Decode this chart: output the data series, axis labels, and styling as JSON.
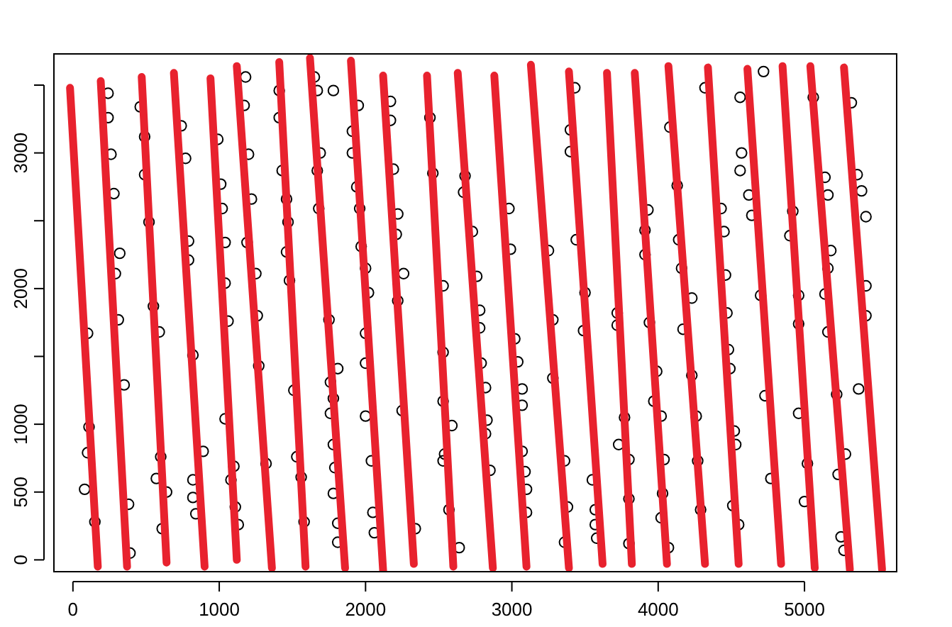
{
  "chart_data": {
    "type": "scatter",
    "xlim": [
      -130,
      5630
    ],
    "ylim": [
      -87,
      3730
    ],
    "xticks": [
      0,
      1000,
      2000,
      3000,
      4000,
      5000
    ],
    "yticks": [
      0,
      500,
      1000,
      {
        "value": 1500,
        "label": null
      },
      2000,
      {
        "value": 2500,
        "label": null
      },
      3000,
      {
        "value": 3500,
        "label": null
      }
    ],
    "grid": false,
    "series": [
      {
        "marker": "circle",
        "color": "#000000",
        "x": [
          240,
          240,
          260,
          280,
          320,
          290,
          310,
          740,
          770,
          790,
          790,
          460,
          490,
          490,
          520,
          550,
          990,
          1010,
          1020,
          1040,
          1040,
          1060,
          1180,
          1170,
          1200,
          1220,
          1190,
          1250,
          1260,
          1410,
          1410,
          1430,
          1460,
          1470,
          1460,
          1480,
          1650,
          1670,
          1690,
          1670,
          1680,
          1780,
          1950,
          1910,
          1910,
          1940,
          1960,
          1970,
          2000,
          2020,
          1750,
          2170,
          2170,
          2190,
          2220,
          2210,
          2260,
          2220,
          2440,
          2460,
          2530,
          2680,
          2670,
          2730,
          2760,
          2780,
          2980,
          2990,
          3250,
          3280,
          3430,
          3400,
          3400,
          3440,
          3500,
          3720,
          4320,
          4560,
          4720,
          4570,
          4560,
          4620,
          4640,
          4080,
          4130,
          4140,
          4160,
          4230,
          3930,
          3910,
          3910,
          3940,
          4430,
          4450,
          4460,
          4470,
          5060,
          5140,
          5160,
          5180,
          5160,
          5140,
          4960,
          4920,
          4900,
          5320,
          5360,
          5390,
          5420,
          5420,
          5420,
          4700,
          100,
          350,
          110,
          100,
          80,
          150,
          380,
          390,
          590,
          600,
          570,
          640,
          610,
          820,
          890,
          820,
          820,
          840,
          1040,
          1100,
          1080,
          1110,
          1130,
          1270,
          1320,
          1510,
          1530,
          1560,
          1580,
          1810,
          1760,
          1780,
          1760,
          1780,
          1790,
          1780,
          1810,
          1810,
          2000,
          2000,
          2000,
          2040,
          2050,
          2060,
          2250,
          2340,
          2530,
          2530,
          2590,
          2540,
          2530,
          2570,
          2640,
          2780,
          2790,
          2820,
          2830,
          2820,
          2850,
          3020,
          3040,
          3070,
          3070,
          3070,
          3090,
          3100,
          3100,
          3280,
          3360,
          3380,
          3360,
          3490,
          3550,
          3570,
          3570,
          3580,
          3730,
          3720,
          4170,
          3990,
          3970,
          4020,
          3770,
          3800,
          4040,
          3800,
          4030,
          4020,
          3800,
          4070,
          4230,
          4260,
          4270,
          4290,
          4480,
          4490,
          4520,
          4530,
          4510,
          4550,
          4730,
          4960,
          4960,
          4770,
          5000,
          5020,
          5160,
          5220,
          5280,
          5230,
          5250,
          5270,
          5370
        ],
        "values": [
          3440,
          3260,
          2990,
          2700,
          2260,
          2110,
          1770,
          3200,
          2960,
          2350,
          2210,
          3340,
          3120,
          2840,
          2490,
          1870,
          3100,
          2770,
          2590,
          2340,
          2040,
          1760,
          3560,
          3350,
          2990,
          2660,
          2340,
          2110,
          1800,
          3460,
          3260,
          2870,
          2660,
          2490,
          2270,
          2060,
          3560,
          3460,
          3000,
          2870,
          2590,
          3460,
          3350,
          3160,
          3000,
          2750,
          2590,
          2310,
          2150,
          1970,
          1770,
          3380,
          3240,
          2880,
          2550,
          2400,
          2110,
          1910,
          3260,
          2850,
          2020,
          2830,
          2710,
          2420,
          2090,
          1840,
          2590,
          2290,
          2280,
          1770,
          3480,
          3170,
          3010,
          2360,
          1970,
          1820,
          3480,
          3410,
          3600,
          3000,
          2870,
          2690,
          2540,
          3190,
          2760,
          2360,
          2150,
          1930,
          2580,
          2430,
          2250,
          1750,
          2590,
          2420,
          2100,
          1820,
          3410,
          2820,
          2690,
          2280,
          2150,
          1960,
          1950,
          2570,
          2390,
          3370,
          2840,
          2720,
          2530,
          2020,
          1800,
          1950,
          1670,
          1290,
          980,
          790,
          520,
          280,
          410,
          50,
          1680,
          760,
          600,
          500,
          230,
          1510,
          800,
          590,
          460,
          340,
          1040,
          690,
          590,
          390,
          260,
          1430,
          710,
          1250,
          760,
          610,
          280,
          1410,
          1310,
          1190,
          1080,
          850,
          680,
          490,
          270,
          130,
          1670,
          1450,
          1060,
          730,
          350,
          200,
          1100,
          230,
          1530,
          1170,
          990,
          780,
          730,
          370,
          90,
          1710,
          1450,
          1270,
          1030,
          930,
          660,
          1630,
          1460,
          1260,
          1140,
          800,
          650,
          520,
          350,
          1340,
          730,
          390,
          130,
          1690,
          590,
          370,
          260,
          160,
          850,
          1730,
          1700,
          1390,
          1170,
          1060,
          1050,
          740,
          740,
          450,
          490,
          310,
          120,
          90,
          1360,
          1060,
          730,
          370,
          1550,
          1410,
          950,
          850,
          400,
          260,
          1210,
          1080,
          1740,
          600,
          430,
          710,
          1680,
          1220,
          780,
          630,
          170,
          70,
          1260
        ]
      },
      {
        "type": "line",
        "color": "#e8222e",
        "x": [
          -20,
          170
        ],
        "values": [
          3480,
          -50
        ]
      },
      {
        "type": "line",
        "color": "#e8222e",
        "x": [
          190,
          370
        ],
        "values": [
          3530,
          -50
        ]
      },
      {
        "type": "line",
        "color": "#e8222e",
        "x": [
          470,
          640
        ],
        "values": [
          3560,
          -20
        ]
      },
      {
        "type": "line",
        "color": "#e8222e",
        "x": [
          690,
          900
        ],
        "values": [
          3590,
          -50
        ]
      },
      {
        "type": "line",
        "color": "#e8222e",
        "x": [
          940,
          1120
        ],
        "values": [
          3550,
          0
        ]
      },
      {
        "type": "line",
        "color": "#e8222e",
        "x": [
          1120,
          1360
        ],
        "values": [
          3640,
          -60
        ]
      },
      {
        "type": "line",
        "color": "#e8222e",
        "x": [
          1410,
          1590
        ],
        "values": [
          3670,
          -50
        ]
      },
      {
        "type": "line",
        "color": "#e8222e",
        "x": [
          1620,
          1860
        ],
        "values": [
          3700,
          -60
        ]
      },
      {
        "type": "line",
        "color": "#e8222e",
        "x": [
          1900,
          2120
        ],
        "values": [
          3680,
          -80
        ]
      },
      {
        "type": "line",
        "color": "#e8222e",
        "x": [
          2120,
          2330
        ],
        "values": [
          3570,
          -30
        ]
      },
      {
        "type": "line",
        "color": "#e8222e",
        "x": [
          2420,
          2600
        ],
        "values": [
          3570,
          -50
        ]
      },
      {
        "type": "line",
        "color": "#e8222e",
        "x": [
          2630,
          2870
        ],
        "values": [
          3590,
          -60
        ]
      },
      {
        "type": "line",
        "color": "#e8222e",
        "x": [
          2880,
          3100
        ],
        "values": [
          3570,
          -50
        ]
      },
      {
        "type": "line",
        "color": "#e8222e",
        "x": [
          3130,
          3390
        ],
        "values": [
          3650,
          -60
        ]
      },
      {
        "type": "line",
        "color": "#e8222e",
        "x": [
          3390,
          3620
        ],
        "values": [
          3600,
          -30
        ]
      },
      {
        "type": "line",
        "color": "#e8222e",
        "x": [
          3650,
          3820
        ],
        "values": [
          3590,
          -30
        ]
      },
      {
        "type": "line",
        "color": "#e8222e",
        "x": [
          3840,
          4060
        ],
        "values": [
          3590,
          -30
        ]
      },
      {
        "type": "line",
        "color": "#e8222e",
        "x": [
          4070,
          4320
        ],
        "values": [
          3640,
          -30
        ]
      },
      {
        "type": "line",
        "color": "#e8222e",
        "x": [
          4340,
          4550
        ],
        "values": [
          3630,
          -30
        ]
      },
      {
        "type": "line",
        "color": "#e8222e",
        "x": [
          4610,
          4840
        ],
        "values": [
          3620,
          -30
        ]
      },
      {
        "type": "line",
        "color": "#e8222e",
        "x": [
          4850,
          5070
        ],
        "values": [
          3640,
          -60
        ]
      },
      {
        "type": "line",
        "color": "#e8222e",
        "x": [
          5040,
          5310
        ],
        "values": [
          3640,
          -70
        ]
      },
      {
        "type": "line",
        "color": "#e8222e",
        "x": [
          5270,
          5530
        ],
        "values": [
          3630,
          -70
        ]
      }
    ]
  }
}
